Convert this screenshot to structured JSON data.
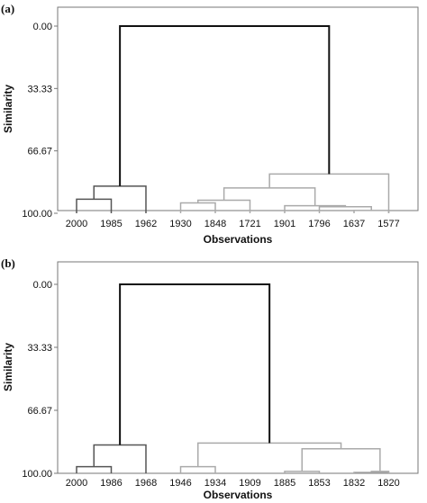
{
  "chart_data": [
    {
      "type": "dendrogram",
      "panel_label": "(a)",
      "xlabel": "Observations",
      "ylabel": "Similarity",
      "ylim": [
        0,
        100
      ],
      "yticks": [
        "0.00",
        "33.33",
        "66.67",
        "100.00"
      ],
      "leaves": [
        "2000",
        "1985",
        "1962",
        "1930",
        "1848",
        "1721",
        "1901",
        "1796",
        "1637",
        "1577"
      ],
      "colors": {
        "left_cluster": "#555555",
        "right_cluster": "#aaaaaa",
        "root": "#111111"
      },
      "merges": [
        {
          "left": "leaf:0",
          "right": "leaf:1",
          "similarity": 92.5,
          "cluster": "left_cluster"
        },
        {
          "left": "node:0",
          "right": "leaf:2",
          "similarity": 85.5,
          "cluster": "left_cluster"
        },
        {
          "left": "leaf:8",
          "right": "leaf:9",
          "similarity": 98.5,
          "cluster": "right_cluster"
        },
        {
          "left": "leaf:7",
          "right": "node:2",
          "similarity": 96.5,
          "cluster": "right_cluster"
        },
        {
          "left": "leaf:6",
          "right": "node:3",
          "similarity": 96.0,
          "cluster": "right_cluster"
        },
        {
          "left": "leaf:3",
          "right": "leaf:4",
          "similarity": 94.5,
          "cluster": "right_cluster"
        },
        {
          "left": "node:5",
          "right": "leaf:5",
          "similarity": 93.0,
          "cluster": "right_cluster"
        },
        {
          "left": "node:6",
          "right": "node:4",
          "similarity": 86.5,
          "cluster": "right_cluster"
        },
        {
          "left": "node:7",
          "right": "leaf:9",
          "similarity": 79.0,
          "cluster": "right_cluster",
          "right_leg_similarity": 100.0
        },
        {
          "left": "node:1",
          "right": "node:8",
          "similarity": 0.0,
          "cluster": "root"
        }
      ]
    },
    {
      "type": "dendrogram",
      "panel_label": "(b)",
      "xlabel": "Observations",
      "ylabel": "Similarity",
      "ylim": [
        0,
        100
      ],
      "yticks": [
        "0.00",
        "33.33",
        "66.67",
        "100.00"
      ],
      "leaves": [
        "2000",
        "1986",
        "1968",
        "1946",
        "1934",
        "1909",
        "1885",
        "1853",
        "1832",
        "1820"
      ],
      "colors": {
        "left_cluster": "#555555",
        "right_cluster": "#aaaaaa",
        "root": "#111111"
      },
      "merges": [
        {
          "left": "leaf:0",
          "right": "leaf:1",
          "similarity": 96.5,
          "cluster": "left_cluster"
        },
        {
          "left": "node:0",
          "right": "leaf:2",
          "similarity": 85.0,
          "cluster": "left_cluster"
        },
        {
          "left": "leaf:3",
          "right": "leaf:4",
          "similarity": 96.5,
          "cluster": "right_cluster"
        },
        {
          "left": "leaf:6",
          "right": "leaf:7",
          "similarity": 99.0,
          "cluster": "right_cluster"
        },
        {
          "left": "leaf:8",
          "right": "leaf:9",
          "similarity": 99.5,
          "cluster": "right_cluster"
        },
        {
          "left": "node:4",
          "right": "leaf:9",
          "similarity": 99.0,
          "cluster": "right_cluster",
          "right_leg_similarity": 100.0
        },
        {
          "left": "node:3",
          "right": "node:5",
          "similarity": 87.0,
          "cluster": "right_cluster"
        },
        {
          "left": "node:2",
          "right": "node:6",
          "similarity": 84.0,
          "cluster": "right_cluster"
        },
        {
          "left": "node:7",
          "right": "leaf:9",
          "similarity": 84.0,
          "cluster": "right_cluster",
          "skip": true
        },
        {
          "left": "node:1",
          "right": "node:7",
          "similarity": 0.0,
          "cluster": "root"
        }
      ]
    }
  ]
}
